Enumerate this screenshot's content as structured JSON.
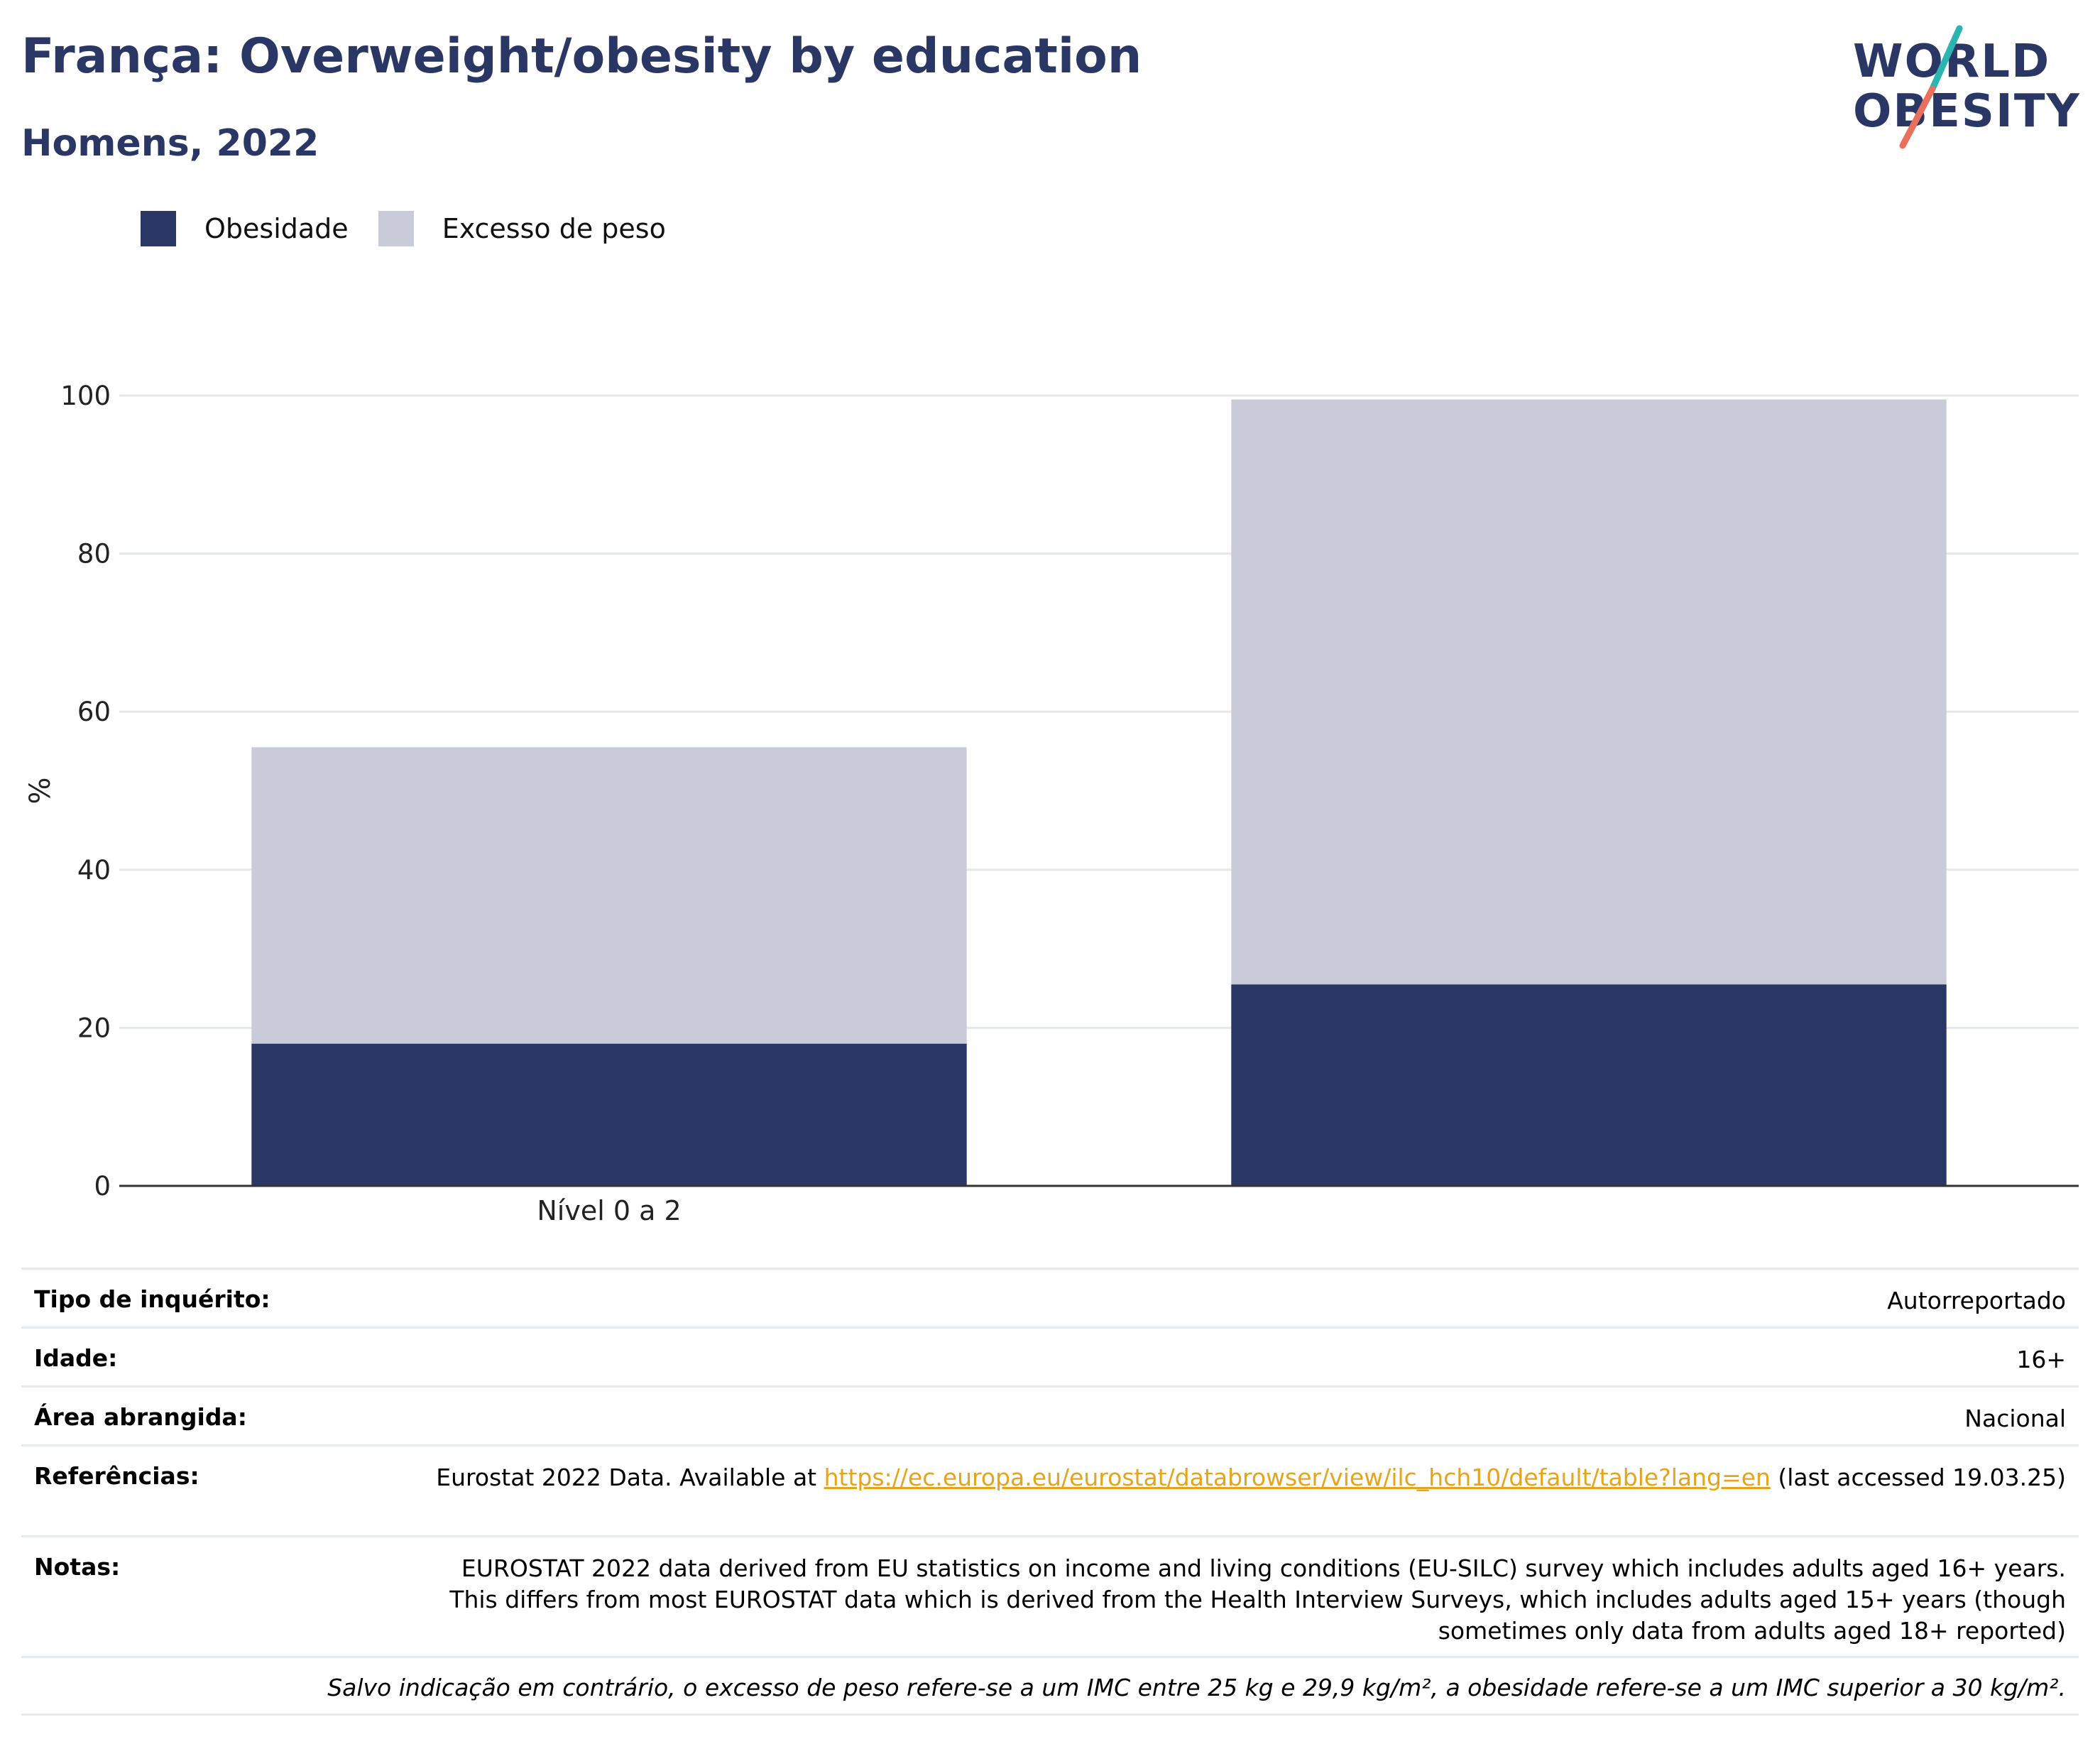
{
  "header": {
    "title": "França: Overweight/obesity by education",
    "subtitle": "Homens, 2022"
  },
  "logo": {
    "line1": "WORLD",
    "line2": "OBESITY"
  },
  "colors": {
    "obesity": "#2a3764",
    "overweight": "#c9ccd8",
    "accent": "#e6a41b",
    "logo_teal": "#2ab5b0",
    "logo_coral": "#e8705d"
  },
  "legend": [
    {
      "label": "Obesidade",
      "color": "#2a3764"
    },
    {
      "label": "Excesso de peso",
      "color": "#c9ccd8"
    }
  ],
  "chart_data": {
    "type": "bar",
    "stacked": true,
    "categories": [
      "Nível 0 a 2",
      ""
    ],
    "series": [
      {
        "name": "Obesidade",
        "values": [
          18,
          25.5
        ]
      },
      {
        "name": "Excesso de peso",
        "values": [
          37.5,
          74
        ]
      }
    ],
    "ylabel": "%",
    "ylim": [
      0,
      100
    ],
    "yticks": [
      0,
      20,
      40,
      60,
      80,
      100
    ],
    "grid": true,
    "legend_position": "top-left"
  },
  "info": {
    "rows": [
      {
        "key": "Tipo de inquérito:",
        "value": "Autorreportado"
      },
      {
        "key": "Idade:",
        "value": "16+"
      },
      {
        "key": "Área abrangida:",
        "value": "Nacional"
      }
    ],
    "references": {
      "key": "Referências:",
      "prefix": "Eurostat 2022 Data. Available at ",
      "link": "https://ec.europa.eu/eurostat/databrowser/view/ilc_hch10/default/table?lang=en",
      "suffix": " (last accessed 19.03.25)"
    },
    "notes": {
      "key": "Notas:",
      "value": "EUROSTAT 2022 data derived from EU statistics on income and living conditions (EU-SILC) survey which includes adults aged 16+ years. This differs from most EUROSTAT data which is derived from the Health Interview Surveys, which includes adults aged 15+ years (though sometimes only data from adults aged 18+ reported)"
    },
    "footnote": "Salvo indicação em contrário, o excesso de peso refere-se a um IMC entre 25 kg e 29,9 kg/m², a obesidade refere-se a um IMC superior a 30 kg/m²."
  }
}
